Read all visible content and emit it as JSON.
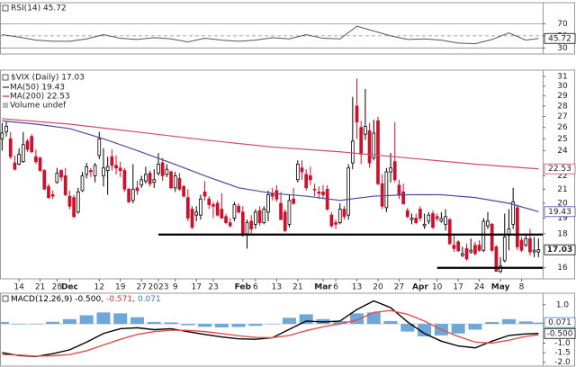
{
  "chart_data": [
    {
      "type": "line",
      "title": "RSI(14) 45.72",
      "xlim": [
        -0.5,
        128
      ],
      "ylim": [
        20,
        105
      ],
      "yticks": [
        30,
        50,
        70
      ],
      "grid": true,
      "series": [
        {
          "color": "#555555",
          "last_label": "45.72",
          "x": [
            0,
            4,
            8,
            12,
            16,
            20,
            24,
            28,
            32,
            36,
            40,
            44,
            48,
            52,
            56,
            60,
            64,
            68,
            72,
            76,
            80,
            84,
            88,
            92,
            96,
            100,
            104,
            108,
            112,
            116,
            120,
            124,
            127
          ],
          "values": [
            52,
            48,
            43,
            41,
            41,
            45,
            52,
            46,
            44,
            47,
            45,
            40,
            46,
            43,
            41,
            43,
            47,
            45,
            52,
            46,
            45,
            66,
            58,
            50,
            44,
            45,
            43,
            38,
            37,
            44,
            55,
            43,
            45.72
          ]
        }
      ]
    },
    {
      "type": "candlestick",
      "title": "$VIX (Daily) 17.03",
      "volume_label": "Volume undef",
      "log": true,
      "xlim": [
        -0.5,
        128
      ],
      "ylim": [
        15.4,
        31.7
      ],
      "grid": false,
      "yticks": [
        16,
        18,
        19,
        20,
        21,
        22,
        24,
        25,
        26,
        27,
        28,
        29,
        30,
        31
      ],
      "xticks": [
        {
          "value": 4,
          "label": "14"
        },
        {
          "value": 9,
          "label": "21"
        },
        {
          "value": 13,
          "label": "28"
        },
        {
          "value": 16,
          "label": "Dec"
        },
        {
          "value": 23,
          "label": "12"
        },
        {
          "value": 28,
          "label": "19"
        },
        {
          "value": 33,
          "label": "27"
        },
        {
          "value": 37,
          "label": "2023"
        },
        {
          "value": 41,
          "label": "9"
        },
        {
          "value": 46,
          "label": "17"
        },
        {
          "value": 50,
          "label": "23"
        },
        {
          "value": 57,
          "label": "Feb"
        },
        {
          "value": 60,
          "label": "6"
        },
        {
          "value": 65,
          "label": "13"
        },
        {
          "value": 70,
          "label": "21"
        },
        {
          "value": 76,
          "label": "Mar"
        },
        {
          "value": 79,
          "label": "6"
        },
        {
          "value": 84,
          "label": "13"
        },
        {
          "value": 89,
          "label": "20"
        },
        {
          "value": 94,
          "label": "27"
        },
        {
          "value": 99,
          "label": "Apr"
        },
        {
          "value": 103,
          "label": "10"
        },
        {
          "value": 108,
          "label": "17"
        },
        {
          "value": 113,
          "label": "24"
        },
        {
          "value": 118,
          "label": "May"
        },
        {
          "value": 123,
          "label": "8"
        }
      ],
      "candles": {
        "up_color": "#000000",
        "down_color": "#d0102a",
        "last_label": "17.03",
        "open": [
          25.0,
          25.6,
          25.0,
          23.0,
          22.9,
          23.1,
          24.8,
          25.2,
          23.5,
          23.4,
          22.4,
          21.2,
          20.6,
          21.5,
          22.4,
          22.0,
          20.5,
          20.4,
          19.4,
          20.9,
          22.1,
          22.4,
          22.0,
          23.6,
          22.0,
          22.4,
          23.5,
          22.8,
          22.6,
          22.4,
          21.0,
          20.2,
          21.1,
          21.3,
          21.6,
          22.2,
          21.5,
          22.2,
          23.0,
          22.1,
          22.3,
          21.1,
          21.8,
          21.2,
          20.4,
          19.6,
          19.2,
          19.2,
          20.8,
          20.3,
          19.9,
          20.0,
          19.6,
          19.1,
          18.7,
          19.0,
          19.8,
          19.4,
          18.0,
          18.8,
          18.6,
          19.5,
          18.7,
          19.4,
          20.7,
          20.9,
          20.0,
          19.4,
          18.6,
          20.3,
          21.7,
          22.6,
          22.1,
          22.0,
          21.0,
          20.8,
          20.8,
          21.0,
          19.2,
          18.7,
          18.7,
          19.6,
          19.2,
          23.0,
          28.0,
          26.0,
          25.4,
          25.7,
          23.4,
          26.6,
          21.4,
          19.7,
          22.3,
          23.1,
          21.3,
          20.8,
          19.5,
          18.9,
          19.0,
          19.6,
          18.5,
          18.8,
          19.3,
          19.1,
          18.8,
          18.6,
          18.9,
          17.3,
          17.5,
          16.7,
          17.1,
          16.9,
          17.3,
          17.3,
          17.0,
          18.5,
          18.6,
          17.2,
          15.8,
          16.4,
          17.9,
          18.6,
          19.7,
          17.6,
          17.3,
          17.7,
          16.9,
          16.9
        ],
        "high": [
          26.4,
          26.5,
          25.6,
          23.6,
          24.2,
          25.6,
          25.0,
          25.4,
          24.1,
          23.5,
          22.5,
          21.4,
          20.9,
          22.6,
          22.5,
          22.6,
          20.9,
          20.6,
          21.1,
          22.3,
          23.0,
          22.6,
          23.0,
          25.6,
          24.2,
          23.5,
          24.1,
          23.6,
          23.1,
          22.6,
          21.1,
          22.9,
          21.6,
          22.0,
          22.7,
          22.4,
          22.5,
          23.8,
          23.4,
          22.9,
          22.4,
          22.3,
          22.2,
          21.3,
          21.0,
          19.8,
          19.8,
          20.6,
          21.6,
          20.5,
          20.1,
          20.2,
          20.7,
          19.3,
          19.0,
          20.1,
          20.0,
          19.8,
          18.9,
          19.2,
          19.6,
          19.8,
          19.8,
          20.9,
          21.1,
          21.3,
          20.8,
          19.6,
          20.6,
          21.1,
          23.2,
          23.2,
          22.5,
          22.7,
          21.4,
          21.2,
          21.3,
          21.3,
          19.4,
          18.9,
          20.0,
          19.8,
          22.9,
          28.9,
          30.8,
          26.6,
          29.7,
          26.4,
          26.7,
          27.0,
          22.1,
          22.6,
          23.8,
          26.5,
          21.7,
          21.4,
          19.7,
          19.3,
          19.3,
          19.8,
          19.3,
          19.4,
          19.5,
          19.3,
          19.4,
          19.6,
          19.0,
          18.0,
          17.6,
          17.2,
          17.4,
          17.7,
          17.5,
          17.6,
          19.0,
          19.4,
          18.7,
          17.3,
          16.6,
          19.3,
          19.6,
          21.1,
          19.9,
          17.8,
          17.9,
          18.3,
          17.8,
          17.7
        ],
        "low": [
          24.0,
          25.2,
          23.3,
          22.4,
          22.8,
          23.0,
          23.9,
          23.8,
          22.9,
          22.3,
          21.0,
          20.3,
          20.3,
          21.4,
          21.6,
          20.5,
          19.6,
          19.0,
          19.3,
          20.8,
          21.8,
          21.9,
          21.5,
          23.3,
          21.2,
          20.6,
          22.4,
          22.1,
          21.9,
          20.8,
          20.0,
          20.0,
          20.6,
          21.1,
          21.4,
          21.2,
          21.1,
          22.0,
          21.6,
          21.9,
          21.0,
          20.8,
          20.9,
          20.4,
          18.8,
          18.3,
          18.8,
          18.9,
          20.2,
          19.6,
          19.0,
          19.1,
          19.0,
          18.6,
          18.4,
          18.8,
          19.3,
          17.8,
          17.1,
          17.9,
          18.3,
          18.5,
          18.6,
          18.8,
          20.2,
          20.1,
          18.9,
          18.1,
          18.4,
          19.9,
          21.5,
          21.7,
          20.9,
          21.3,
          20.5,
          20.3,
          20.3,
          19.5,
          18.4,
          18.3,
          18.6,
          18.9,
          18.9,
          22.5,
          25.0,
          22.9,
          24.9,
          22.6,
          23.2,
          21.3,
          19.6,
          19.4,
          21.5,
          21.5,
          20.3,
          19.9,
          19.0,
          18.6,
          18.6,
          18.8,
          18.3,
          18.6,
          18.3,
          18.8,
          18.7,
          18.2,
          17.3,
          16.9,
          16.9,
          16.6,
          16.4,
          16.8,
          16.7,
          16.9,
          16.9,
          18.3,
          16.9,
          15.8,
          15.7,
          16.3,
          17.0,
          18.3,
          17.0,
          16.9,
          17.2,
          16.7,
          16.6,
          16.6
        ],
        "close": [
          25.5,
          26.1,
          23.5,
          22.5,
          23.7,
          24.5,
          24.1,
          23.9,
          23.1,
          22.4,
          21.0,
          20.4,
          20.5,
          22.2,
          21.9,
          20.6,
          19.8,
          19.1,
          20.8,
          22.0,
          22.7,
          22.3,
          22.8,
          25.0,
          22.6,
          22.7,
          22.8,
          22.6,
          22.4,
          21.0,
          20.1,
          21.0,
          20.9,
          21.7,
          22.1,
          21.4,
          21.7,
          22.9,
          22.0,
          22.5,
          21.1,
          22.0,
          21.0,
          20.5,
          19.0,
          18.4,
          19.4,
          20.3,
          20.5,
          19.9,
          19.8,
          19.2,
          19.0,
          18.7,
          18.5,
          19.9,
          19.4,
          17.9,
          18.7,
          18.3,
          19.4,
          18.7,
          19.6,
          20.6,
          20.5,
          20.3,
          18.9,
          18.2,
          20.2,
          20.0,
          22.9,
          22.3,
          21.1,
          21.7,
          20.95,
          20.7,
          20.6,
          19.6,
          18.5,
          18.6,
          19.6,
          19.1,
          22.6,
          24.8,
          26.5,
          23.7,
          26.1,
          23.0,
          25.5,
          21.4,
          19.8,
          22.3,
          22.6,
          21.7,
          20.6,
          19.97,
          19.1,
          19.0,
          18.7,
          19.0,
          18.6,
          19.2,
          18.4,
          18.97,
          18.97,
          19.1,
          17.4,
          17.1,
          16.97,
          16.8,
          16.5,
          17.0,
          16.8,
          17.0,
          18.8,
          18.8,
          17.0,
          15.8,
          16.1,
          17.8,
          18.3,
          20.1,
          17.2,
          17.0,
          17.7,
          16.9,
          17.0,
          17.03
        ]
      },
      "series": [
        {
          "name": "MA(50) 19.43",
          "color": "#4a4aa8",
          "last_label": "19.43",
          "x": [
            0,
            8,
            16,
            24,
            32,
            40,
            48,
            56,
            64,
            72,
            80,
            88,
            96,
            104,
            112,
            120,
            127
          ],
          "values": [
            26.6,
            26.3,
            25.9,
            25.0,
            24.0,
            23.0,
            22.0,
            21.1,
            20.7,
            20.5,
            20.2,
            20.5,
            20.6,
            20.6,
            20.4,
            20.0,
            19.43
          ]
        },
        {
          "name": "MA(200) 22.53",
          "color": "#d04a6a",
          "last_label": "22.53",
          "x": [
            0,
            16,
            32,
            48,
            64,
            80,
            96,
            112,
            127
          ],
          "values": [
            26.8,
            26.3,
            25.6,
            24.9,
            24.3,
            23.9,
            23.4,
            22.9,
            22.53
          ]
        }
      ],
      "trend_lines": [
        {
          "color": "#000000",
          "x": [
            37,
            128
          ],
          "values": [
            17.95,
            17.95
          ]
        },
        {
          "color": "#000000",
          "x": [
            103,
            128
          ],
          "values": [
            16.0,
            16.0
          ]
        }
      ]
    },
    {
      "type": "macd",
      "xlim": [
        -0.5,
        128
      ],
      "ylim": [
        -2.2,
        1.6
      ],
      "grid": false,
      "yticks": [
        {
          "value": 1,
          "label": "1.0"
        },
        {
          "value": -1,
          "label": "-1.0"
        },
        -1.5,
        {
          "value": -2,
          "label": "-2.0"
        }
      ],
      "title_parts": [
        {
          "text": "MACD(12,26,9) -0.500,",
          "color": "#000000"
        },
        {
          "text": "-0.571,",
          "color": "#d03030"
        },
        {
          "text": "0.071",
          "color": "#3a7ac0"
        }
      ],
      "x": [
        0,
        4,
        8,
        12,
        16,
        20,
        24,
        28,
        32,
        36,
        40,
        44,
        48,
        52,
        56,
        60,
        64,
        68,
        72,
        76,
        80,
        84,
        88,
        92,
        96,
        100,
        104,
        108,
        112,
        116,
        120,
        124,
        127
      ],
      "series": [
        {
          "style": "bar",
          "color": "#6fa8d8",
          "last_label": "0.071",
          "values": [
            0.1,
            -0.03,
            -0.02,
            0.11,
            0.25,
            0.45,
            0.6,
            0.55,
            0.35,
            0.1,
            0.08,
            -0.07,
            -0.15,
            -0.18,
            -0.16,
            -0.1,
            0.0,
            0.32,
            0.5,
            0.25,
            0.15,
            0.55,
            0.6,
            0.15,
            -0.4,
            -0.65,
            -0.6,
            -0.5,
            -0.3,
            0.1,
            0.25,
            0.13,
            0.071
          ]
        },
        {
          "style": "line",
          "color": "#000000",
          "last_label": "-0.500",
          "values": [
            -1.5,
            -1.65,
            -1.7,
            -1.55,
            -1.35,
            -0.95,
            -0.5,
            -0.25,
            -0.2,
            -0.3,
            -0.25,
            -0.4,
            -0.55,
            -0.68,
            -0.78,
            -0.8,
            -0.72,
            -0.28,
            0.15,
            0.1,
            0.15,
            0.75,
            1.2,
            0.85,
            0.1,
            -0.5,
            -0.9,
            -1.15,
            -1.25,
            -0.9,
            -0.6,
            -0.52,
            -0.5
          ]
        },
        {
          "style": "line",
          "color": "#e05050",
          "values": [
            -1.6,
            -1.62,
            -1.68,
            -1.66,
            -1.6,
            -1.4,
            -1.1,
            -0.8,
            -0.55,
            -0.4,
            -0.33,
            -0.33,
            -0.4,
            -0.5,
            -0.62,
            -0.7,
            -0.72,
            -0.6,
            -0.35,
            -0.15,
            0.0,
            0.2,
            0.6,
            0.7,
            0.5,
            0.15,
            -0.3,
            -0.65,
            -0.95,
            -1.0,
            -0.85,
            -0.65,
            -0.571
          ]
        }
      ]
    }
  ]
}
